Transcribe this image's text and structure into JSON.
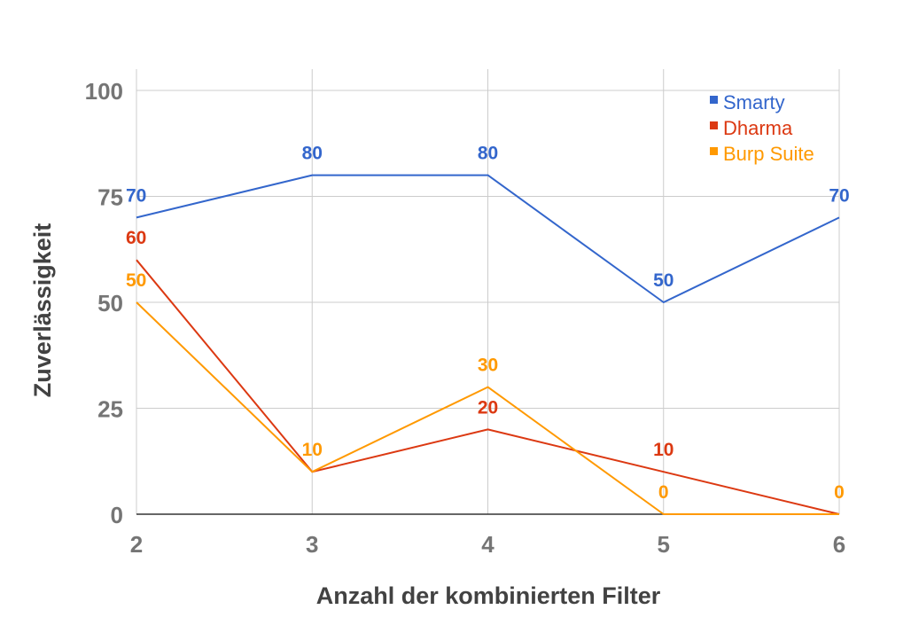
{
  "chart_data": {
    "type": "line",
    "title": "",
    "xlabel": "Anzahl der kombinierten Filter",
    "ylabel": "Zuverlässigkeit",
    "x": [
      2,
      3,
      4,
      5,
      6
    ],
    "x_ticks": [
      "2",
      "3",
      "4",
      "5",
      "6"
    ],
    "ylim": [
      0,
      100
    ],
    "y_ticks": [
      "0",
      "25",
      "50",
      "75",
      "100"
    ],
    "grid": true,
    "legend_position": "top-right",
    "series": [
      {
        "name": "Smarty",
        "color": "#3366cc",
        "values": [
          70,
          80,
          80,
          50,
          70
        ],
        "labels": [
          "70",
          "80",
          "80",
          "50",
          "70"
        ]
      },
      {
        "name": "Dharma",
        "color": "#dc3912",
        "values": [
          60,
          10,
          20,
          10,
          0
        ],
        "labels": [
          "60",
          "",
          "20",
          "10",
          ""
        ]
      },
      {
        "name": "Burp Suite",
        "color": "#ff9900",
        "values": [
          50,
          10,
          30,
          0,
          0
        ],
        "labels": [
          "50",
          "10",
          "30",
          "0",
          "0"
        ]
      }
    ]
  }
}
